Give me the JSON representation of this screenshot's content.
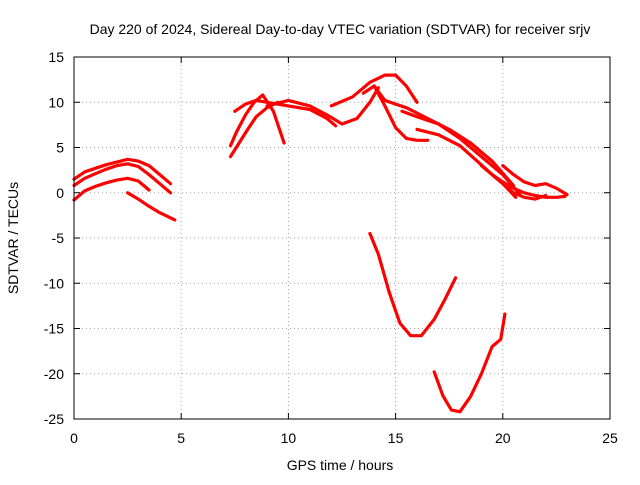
{
  "chart_data": {
    "type": "scatter",
    "title": "Day 220 of 2024, Sidereal Day-to-day VTEC variation (SDTVAR) for receiver srjv",
    "xlabel": "GPS time / hours",
    "ylabel": "SDTVAR / TECUs",
    "xlim": [
      0,
      25
    ],
    "ylim": [
      -25,
      15
    ],
    "xticks": [
      0,
      5,
      10,
      15,
      20,
      25
    ],
    "yticks": [
      15,
      10,
      5,
      0,
      -5,
      -10,
      -15,
      -20,
      -25
    ],
    "grid": true,
    "legend": "none",
    "color": "#ff0000",
    "series": [
      {
        "name": "arc-1",
        "x": [
          0.0,
          0.5,
          1.0,
          1.5,
          2.0,
          2.5,
          3.0,
          3.5,
          4.0,
          4.5
        ],
        "y": [
          1.5,
          2.3,
          2.7,
          3.1,
          3.4,
          3.7,
          3.5,
          3.0,
          2.0,
          1.0
        ]
      },
      {
        "name": "arc-2",
        "x": [
          0.0,
          0.5,
          1.0,
          1.5,
          2.0,
          2.5,
          3.0,
          3.5,
          4.0,
          4.5
        ],
        "y": [
          0.8,
          1.6,
          2.1,
          2.6,
          3.0,
          3.2,
          2.9,
          2.0,
          1.0,
          0.0
        ]
      },
      {
        "name": "arc-3",
        "x": [
          0.0,
          0.5,
          1.0,
          1.5,
          2.0,
          2.5,
          3.0,
          3.5
        ],
        "y": [
          -0.8,
          0.2,
          0.7,
          1.1,
          1.4,
          1.6,
          1.3,
          0.3
        ]
      },
      {
        "name": "arc-4",
        "x": [
          2.5,
          3.0,
          3.5,
          4.0,
          4.7
        ],
        "y": [
          0.0,
          -0.7,
          -1.5,
          -2.2,
          -3.0
        ]
      },
      {
        "name": "arc-5",
        "x": [
          7.3,
          7.6,
          8.0,
          8.4,
          8.8,
          9.3,
          9.8
        ],
        "y": [
          5.2,
          6.8,
          8.6,
          10.0,
          10.8,
          9.0,
          5.5
        ]
      },
      {
        "name": "arc-6",
        "x": [
          7.3,
          7.7,
          8.1,
          8.5,
          9.0,
          9.5
        ],
        "y": [
          4.0,
          5.5,
          7.0,
          8.4,
          9.4,
          10.0
        ]
      },
      {
        "name": "arc-7",
        "x": [
          7.5,
          8.0,
          8.5,
          9.0,
          10.0,
          11.0,
          11.8,
          12.2
        ],
        "y": [
          9.0,
          9.8,
          10.2,
          10.0,
          9.6,
          9.2,
          8.2,
          7.4
        ]
      },
      {
        "name": "arc-8",
        "x": [
          9.0,
          10.0,
          11.0,
          11.8,
          12.5,
          13.2,
          13.8,
          14.2
        ],
        "y": [
          9.6,
          10.2,
          9.6,
          8.6,
          7.6,
          8.2,
          10.0,
          11.6
        ]
      },
      {
        "name": "arc-9",
        "x": [
          12.0,
          13.0,
          13.8,
          14.5,
          15.0,
          15.5,
          16.0
        ],
        "y": [
          9.6,
          10.6,
          12.2,
          13.0,
          13.0,
          11.8,
          10.0
        ]
      },
      {
        "name": "arc-10",
        "x": [
          14.0,
          14.5,
          15.0,
          15.5,
          16.5,
          17.5,
          18.5,
          19.5,
          20.5
        ],
        "y": [
          11.8,
          10.2,
          9.8,
          9.4,
          8.2,
          7.0,
          5.5,
          3.5,
          0.8
        ]
      },
      {
        "name": "arc-11",
        "x": [
          13.5,
          14.0,
          14.5,
          15.0,
          15.5,
          16.0,
          16.5
        ],
        "y": [
          11.0,
          11.8,
          9.6,
          7.2,
          6.0,
          5.8,
          5.8
        ]
      },
      {
        "name": "arc-12",
        "x": [
          15.3,
          16.0,
          17.0,
          18.0,
          19.0,
          20.0,
          20.8
        ],
        "y": [
          9.0,
          8.4,
          7.6,
          6.0,
          4.0,
          2.0,
          -0.2
        ]
      },
      {
        "name": "arc-13",
        "x": [
          16.0,
          17.0,
          18.0,
          18.8,
          19.5,
          20.0,
          20.6
        ],
        "y": [
          7.0,
          6.4,
          5.2,
          3.5,
          2.0,
          1.0,
          -0.5
        ]
      },
      {
        "name": "arc-14",
        "x": [
          19.5,
          20.0,
          20.5,
          21.0,
          21.5,
          22.0,
          22.5,
          22.9
        ],
        "y": [
          2.0,
          1.2,
          0.5,
          0.0,
          -0.3,
          -0.5,
          -0.5,
          -0.4
        ]
      },
      {
        "name": "arc-15",
        "x": [
          19.0,
          19.5,
          20.0,
          20.5,
          21.0,
          21.5,
          22.0
        ],
        "y": [
          3.0,
          2.0,
          1.0,
          0.0,
          -0.5,
          -0.7,
          -0.3
        ]
      },
      {
        "name": "arc-16",
        "x": [
          20.0,
          20.5,
          21.0,
          21.5,
          22.0,
          22.5,
          23.0
        ],
        "y": [
          3.0,
          2.0,
          1.2,
          0.8,
          1.0,
          0.5,
          -0.2
        ]
      },
      {
        "name": "arc-17",
        "x": [
          13.8,
          14.2,
          14.7,
          15.2,
          15.7,
          16.2,
          16.8,
          17.3,
          17.8
        ],
        "y": [
          -4.5,
          -6.8,
          -11.0,
          -14.4,
          -15.8,
          -15.8,
          -14.0,
          -11.8,
          -9.4
        ]
      },
      {
        "name": "arc-18",
        "x": [
          16.8,
          17.2,
          17.6,
          18.0,
          18.5,
          19.0,
          19.5,
          19.9,
          20.1
        ],
        "y": [
          -19.8,
          -22.4,
          -24.0,
          -24.2,
          -22.5,
          -20.0,
          -17.0,
          -16.2,
          -13.4
        ]
      }
    ]
  }
}
